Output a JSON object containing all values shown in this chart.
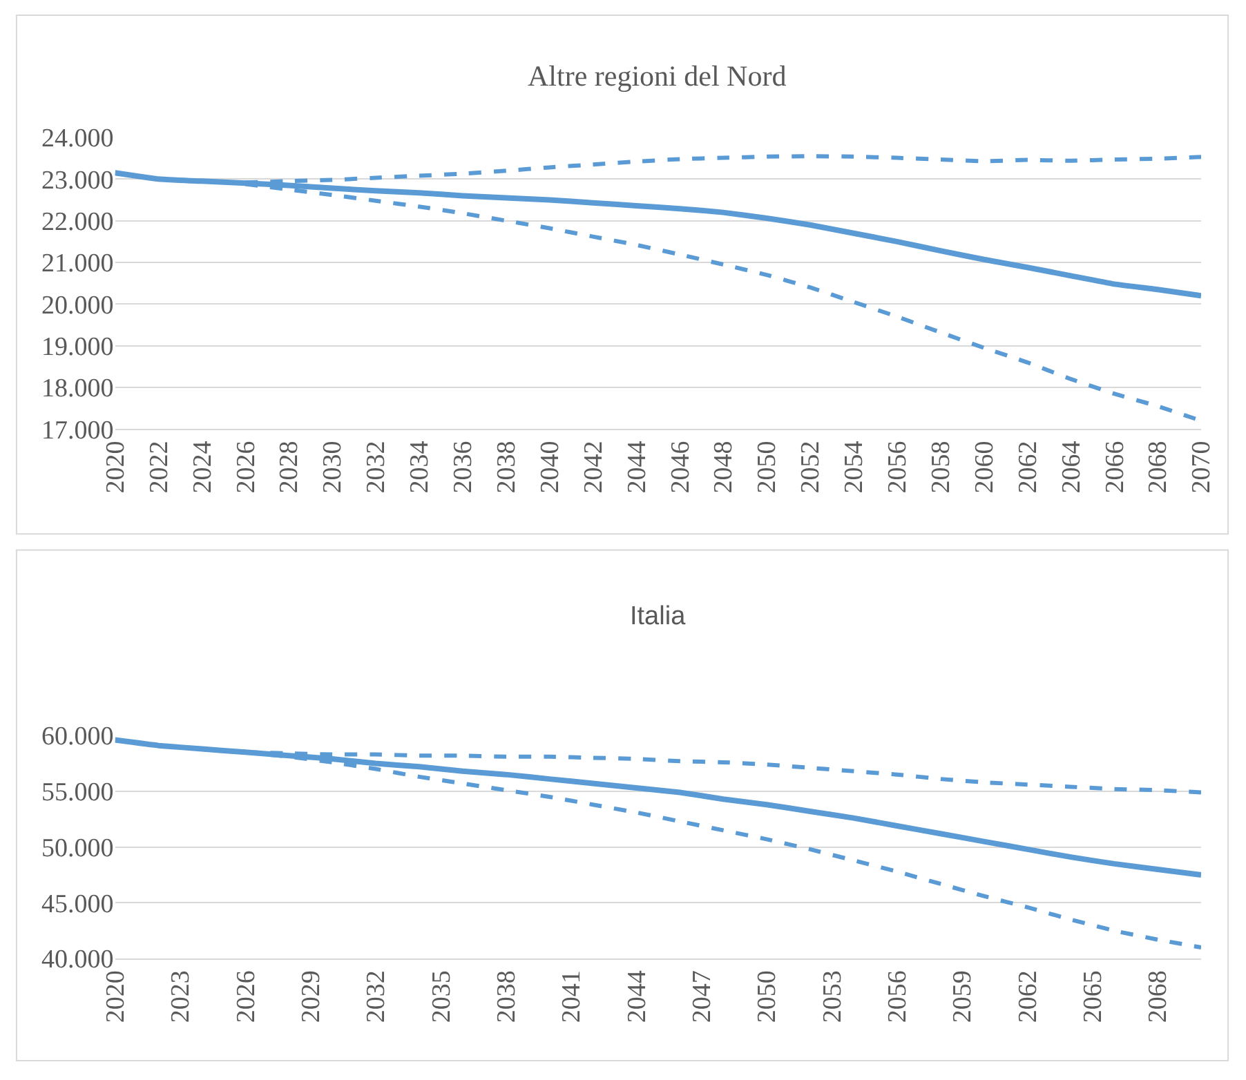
{
  "chart_data": [
    {
      "type": "line",
      "title": "Altre regioni del Nord",
      "grid": "y",
      "xlim": [
        2020,
        2070
      ],
      "xticks": [
        2020,
        2022,
        2024,
        2026,
        2028,
        2030,
        2032,
        2034,
        2036,
        2038,
        2040,
        2042,
        2044,
        2046,
        2048,
        2050,
        2052,
        2054,
        2056,
        2058,
        2060,
        2062,
        2064,
        2066,
        2068,
        2070
      ],
      "ylim": [
        17000,
        24000
      ],
      "yticks": [
        {
          "value": 17000,
          "label": "17.000"
        },
        {
          "value": 18000,
          "label": "18.000"
        },
        {
          "value": 19000,
          "label": "19.000"
        },
        {
          "value": 20000,
          "label": "20.000"
        },
        {
          "value": 21000,
          "label": "21.000"
        },
        {
          "value": 22000,
          "label": "22.000"
        },
        {
          "value": 23000,
          "label": "23.000"
        },
        {
          "value": 24000,
          "label": "24.000"
        }
      ],
      "series": [
        {
          "color": "#5b9bd5",
          "line_style": "solid",
          "x": [
            2020,
            2022,
            2024,
            2026,
            2028,
            2030,
            2032,
            2034,
            2036,
            2038,
            2040,
            2042,
            2044,
            2046,
            2048,
            2050,
            2052,
            2054,
            2056,
            2058,
            2060,
            2062,
            2064,
            2066,
            2068,
            2070
          ],
          "values": [
            23150,
            23000,
            22950,
            22900,
            22850,
            22780,
            22720,
            22670,
            22600,
            22550,
            22500,
            22430,
            22360,
            22290,
            22200,
            22060,
            21900,
            21700,
            21500,
            21280,
            21070,
            20880,
            20680,
            20480,
            20350,
            20200
          ]
        },
        {
          "color": "#5b9bd5",
          "line_style": "dashed",
          "x": [
            2026,
            2028,
            2030,
            2032,
            2034,
            2036,
            2038,
            2040,
            2042,
            2044,
            2046,
            2048,
            2050,
            2052,
            2054,
            2056,
            2058,
            2060,
            2062,
            2064,
            2066,
            2068,
            2070
          ],
          "values": [
            22920,
            22950,
            22980,
            23030,
            23080,
            23130,
            23200,
            23280,
            23350,
            23420,
            23480,
            23510,
            23540,
            23550,
            23540,
            23510,
            23470,
            23430,
            23460,
            23440,
            23470,
            23490,
            23530
          ]
        },
        {
          "color": "#5b9bd5",
          "line_style": "dashed",
          "x": [
            2026,
            2028,
            2030,
            2032,
            2034,
            2036,
            2038,
            2040,
            2042,
            2044,
            2046,
            2048,
            2050,
            2052,
            2054,
            2056,
            2058,
            2060,
            2062,
            2064,
            2066,
            2068,
            2070
          ],
          "values": [
            22880,
            22750,
            22620,
            22480,
            22340,
            22180,
            22000,
            21820,
            21620,
            21420,
            21190,
            20950,
            20700,
            20400,
            20050,
            19700,
            19320,
            18950,
            18600,
            18200,
            17850,
            17550,
            17200
          ]
        }
      ]
    },
    {
      "type": "line",
      "title": "Italia",
      "grid": "y",
      "xlim": [
        2020,
        2070
      ],
      "xticks": [
        2020,
        2023,
        2026,
        2029,
        2032,
        2035,
        2038,
        2041,
        2044,
        2047,
        2050,
        2053,
        2056,
        2059,
        2062,
        2065,
        2068
      ],
      "ylim": [
        40000,
        60000
      ],
      "yticks": [
        {
          "value": 40000,
          "label": "40.000"
        },
        {
          "value": 45000,
          "label": "45.000"
        },
        {
          "value": 50000,
          "label": "50.000"
        },
        {
          "value": 55000,
          "label": "55.000"
        },
        {
          "value": 60000,
          "label": "60.000"
        }
      ],
      "series": [
        {
          "color": "#5b9bd5",
          "line_style": "solid",
          "x": [
            2020,
            2022,
            2024,
            2026,
            2028,
            2030,
            2032,
            2034,
            2036,
            2038,
            2040,
            2042,
            2044,
            2046,
            2048,
            2050,
            2052,
            2054,
            2056,
            2058,
            2060,
            2062,
            2064,
            2066,
            2068,
            2070
          ],
          "values": [
            59600,
            59100,
            58800,
            58500,
            58200,
            57900,
            57500,
            57200,
            56800,
            56500,
            56100,
            55700,
            55300,
            54900,
            54300,
            53800,
            53200,
            52600,
            51900,
            51200,
            50500,
            49800,
            49100,
            48500,
            48000,
            47500
          ]
        },
        {
          "color": "#5b9bd5",
          "line_style": "dashed",
          "x": [
            2026,
            2028,
            2030,
            2032,
            2034,
            2036,
            2038,
            2040,
            2042,
            2044,
            2046,
            2048,
            2050,
            2052,
            2054,
            2056,
            2058,
            2060,
            2062,
            2064,
            2066,
            2068,
            2070
          ],
          "values": [
            58500,
            58400,
            58300,
            58300,
            58200,
            58200,
            58100,
            58100,
            58000,
            57900,
            57700,
            57600,
            57400,
            57100,
            56800,
            56500,
            56100,
            55800,
            55600,
            55400,
            55200,
            55100,
            54900
          ]
        },
        {
          "color": "#5b9bd5",
          "line_style": "dashed",
          "x": [
            2026,
            2028,
            2030,
            2032,
            2034,
            2036,
            2038,
            2040,
            2042,
            2044,
            2046,
            2048,
            2050,
            2052,
            2054,
            2056,
            2058,
            2060,
            2062,
            2064,
            2066,
            2068,
            2070
          ],
          "values": [
            58500,
            58100,
            57600,
            57000,
            56300,
            55700,
            55100,
            54500,
            53800,
            53100,
            52300,
            51500,
            50700,
            49800,
            48800,
            47800,
            46700,
            45600,
            44600,
            43500,
            42500,
            41700,
            41000
          ]
        }
      ]
    }
  ]
}
